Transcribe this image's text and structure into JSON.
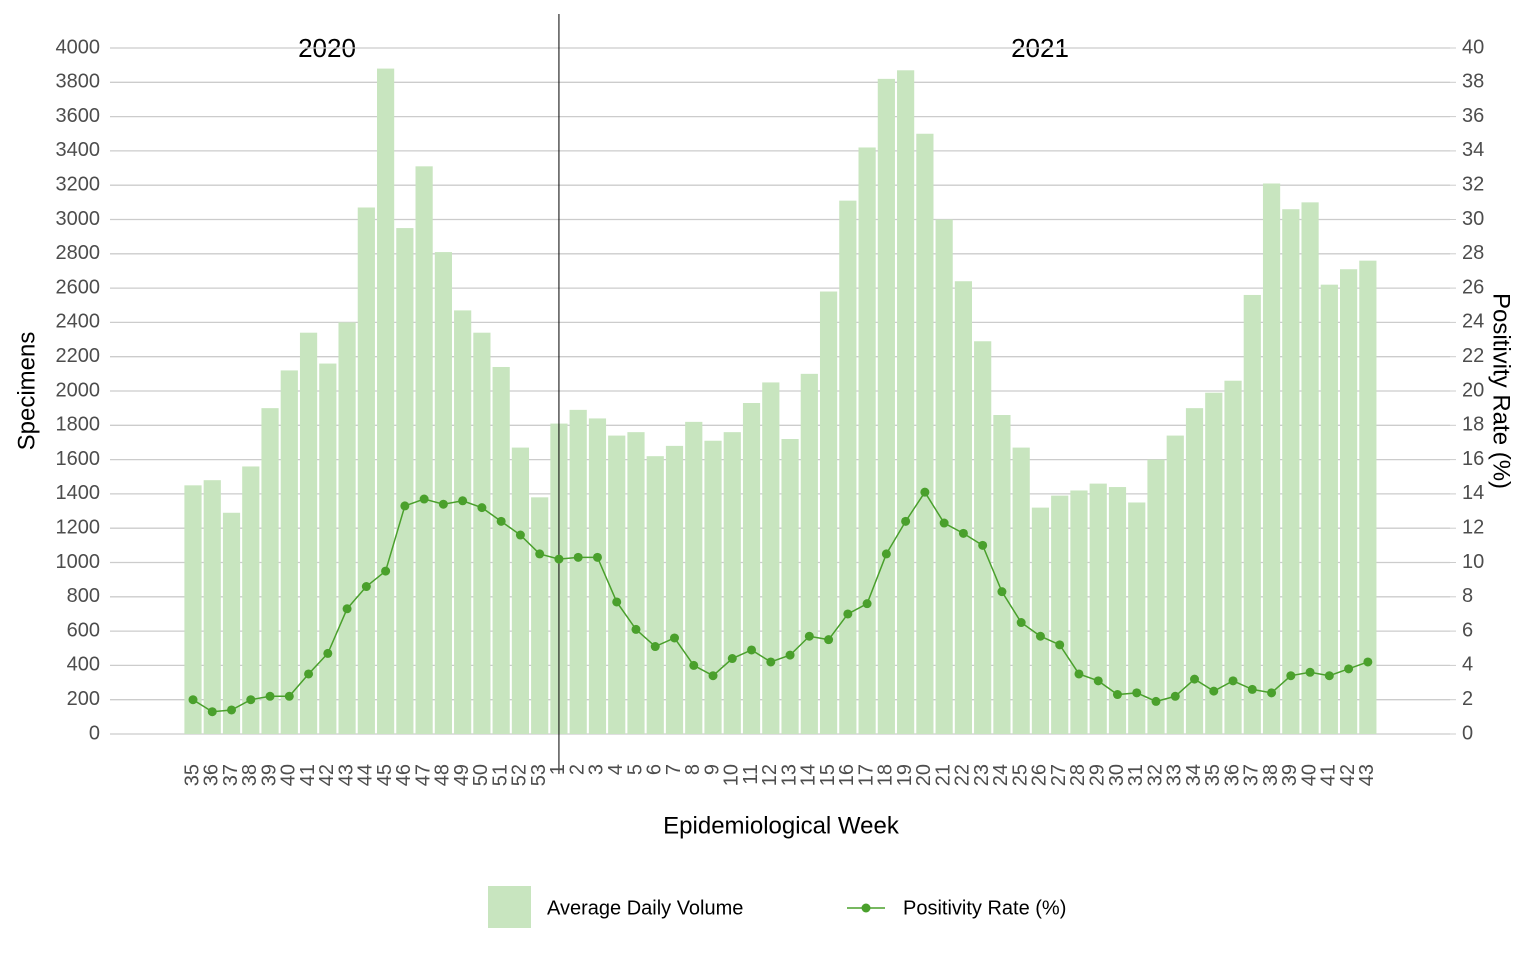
{
  "chart_data": {
    "type": "bar_line",
    "x_label": "Epidemiological Week",
    "y_label": "Specimens",
    "y2_label": "Positivity Rate (%)",
    "annotations": [
      "2020",
      "2021"
    ],
    "categories": [
      "35",
      "36",
      "37",
      "38",
      "39",
      "40",
      "41",
      "42",
      "43",
      "44",
      "45",
      "46",
      "47",
      "48",
      "49",
      "50",
      "51",
      "52",
      "53",
      "1",
      "2",
      "3",
      "4",
      "5",
      "6",
      "7",
      "8",
      "9",
      "10",
      "11",
      "12",
      "13",
      "14",
      "15",
      "16",
      "17",
      "18",
      "19",
      "20",
      "21",
      "22",
      "23",
      "24",
      "25",
      "26",
      "27",
      "28",
      "29",
      "30",
      "31",
      "32",
      "33",
      "34",
      "35",
      "36",
      "37",
      "38",
      "39",
      "40",
      "41",
      "42",
      "43"
    ],
    "series": [
      {
        "name": "Average Daily Volume",
        "type": "bar",
        "color": "#c8e5bf",
        "values": [
          1450,
          1480,
          1290,
          1560,
          1900,
          2120,
          2340,
          2160,
          2400,
          3070,
          3880,
          2950,
          3310,
          2810,
          2470,
          2340,
          2140,
          1670,
          1380,
          1810,
          1890,
          1840,
          1740,
          1760,
          1620,
          1680,
          1820,
          1710,
          1760,
          1930,
          2050,
          1720,
          2100,
          2580,
          3110,
          3420,
          3820,
          3870,
          3500,
          3000,
          2640,
          2290,
          1860,
          1670,
          1320,
          1390,
          1420,
          1460,
          1440,
          1350,
          1600,
          1740,
          1900,
          1990,
          2060,
          2560,
          3210,
          3060,
          3100,
          2620,
          2710,
          2760
        ]
      },
      {
        "name": "Positivity Rate (%)",
        "type": "line",
        "axis": "y2",
        "color": "#4aa02c",
        "values": [
          2.0,
          1.3,
          1.4,
          2.0,
          2.2,
          2.2,
          3.5,
          4.7,
          7.3,
          8.6,
          9.5,
          13.3,
          13.7,
          13.4,
          13.6,
          13.2,
          12.4,
          11.6,
          10.5,
          10.2,
          10.3,
          10.3,
          7.7,
          6.1,
          5.1,
          5.6,
          4.0,
          3.4,
          4.4,
          4.9,
          4.2,
          4.6,
          5.7,
          5.5,
          7.0,
          7.6,
          10.5,
          12.4,
          14.1,
          12.3,
          11.7,
          11.0,
          8.3,
          6.5,
          5.7,
          5.2,
          3.5,
          3.1,
          2.3,
          2.4,
          1.9,
          2.2,
          3.2,
          2.5,
          3.1,
          2.6,
          2.4,
          3.4,
          3.6,
          3.4,
          3.8,
          4.2
        ]
      }
    ],
    "ylim": [
      0,
      4000
    ],
    "yticks": [
      0,
      200,
      400,
      600,
      800,
      1000,
      1200,
      1400,
      1600,
      1800,
      2000,
      2200,
      2400,
      2600,
      2800,
      3000,
      3200,
      3400,
      3600,
      3800,
      4000
    ],
    "y2lim": [
      0,
      40
    ],
    "y2ticks": [
      0,
      2,
      4,
      6,
      8,
      10,
      12,
      14,
      16,
      18,
      20,
      22,
      24,
      26,
      28,
      30,
      32,
      34,
      36,
      38,
      40
    ],
    "grid": true,
    "legend": "bottom"
  }
}
